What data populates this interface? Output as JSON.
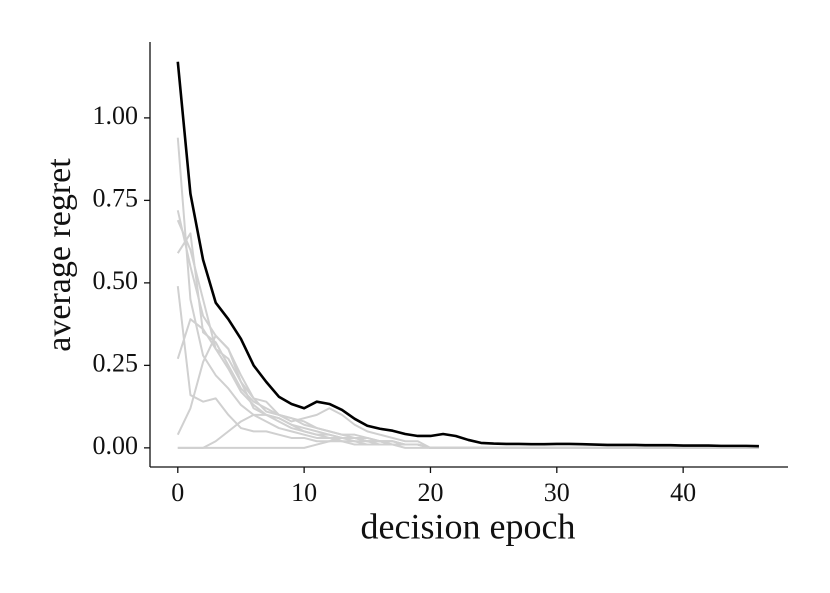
{
  "chart_data": {
    "type": "line",
    "xlabel": "decision epoch",
    "ylabel": "average regret",
    "x": [
      0,
      1,
      2,
      3,
      4,
      5,
      6,
      7,
      8,
      9,
      10,
      11,
      12,
      13,
      14,
      15,
      16,
      17,
      18,
      19,
      20,
      21,
      22,
      23,
      24,
      25,
      26,
      27,
      28,
      29,
      30,
      31,
      32,
      33,
      34,
      35,
      36,
      37,
      38,
      39,
      40,
      41,
      42,
      43,
      44,
      45,
      46
    ],
    "xlim": [
      -2.2,
      48.3
    ],
    "xticks": [
      0,
      10,
      20,
      30,
      40
    ],
    "ylim": [
      -0.058,
      1.23
    ],
    "yticks": [
      {
        "value": 0,
        "label": "0.00"
      },
      {
        "value": 0.25,
        "label": "0.25"
      },
      {
        "value": 0.5,
        "label": "0.50"
      },
      {
        "value": 0.75,
        "label": "0.75"
      },
      {
        "value": 1,
        "label": "1.00"
      }
    ],
    "grid": false,
    "series": [
      {
        "color": "#d0d0d0",
        "values": [
          0.94,
          0.45,
          0.28,
          0.22,
          0.18,
          0.13,
          0.1,
          0.08,
          0.06,
          0.05,
          0.04,
          0.03,
          0.03,
          0.02,
          0.02,
          0.01,
          0.01,
          0.01,
          0.01,
          0.01,
          0,
          0,
          0,
          0,
          0,
          0,
          0,
          0,
          0,
          0,
          0,
          0,
          0,
          0,
          0,
          0,
          0,
          0,
          0,
          0,
          0,
          0,
          0,
          0,
          0,
          0,
          0
        ]
      },
      {
        "color": "#d0d0d0",
        "values": [
          0.72,
          0.55,
          0.4,
          0.34,
          0.3,
          0.22,
          0.15,
          0.14,
          0.1,
          0.08,
          0.09,
          0.1,
          0.12,
          0.1,
          0.07,
          0.05,
          0.04,
          0.03,
          0.02,
          0.02,
          0,
          0,
          0,
          0,
          0,
          0,
          0,
          0,
          0,
          0,
          0,
          0,
          0,
          0,
          0,
          0,
          0,
          0,
          0,
          0,
          0,
          0,
          0,
          0,
          0,
          0,
          0
        ]
      },
      {
        "color": "#d0d0d0",
        "values": [
          0.69,
          0.6,
          0.45,
          0.3,
          0.27,
          0.2,
          0.12,
          0.1,
          0.09,
          0.07,
          0.06,
          0.05,
          0.04,
          0.03,
          0.03,
          0.02,
          0.02,
          0.01,
          0.01,
          0.01,
          0,
          0,
          0,
          0,
          0,
          0,
          0,
          0,
          0,
          0,
          0,
          0,
          0,
          0,
          0,
          0,
          0,
          0,
          0,
          0,
          0,
          0,
          0,
          0,
          0,
          0,
          0
        ]
      },
      {
        "color": "#d0d0d0",
        "values": [
          0.59,
          0.65,
          0.35,
          0.32,
          0.25,
          0.18,
          0.14,
          0.12,
          0.1,
          0.09,
          0.08,
          0.06,
          0.05,
          0.04,
          0.03,
          0.02,
          0.02,
          0.01,
          0.01,
          0.01,
          0,
          0,
          0,
          0,
          0,
          0,
          0,
          0,
          0,
          0,
          0,
          0,
          0,
          0,
          0,
          0,
          0,
          0,
          0,
          0,
          0,
          0,
          0,
          0,
          0,
          0,
          0
        ]
      },
      {
        "color": "#d0d0d0",
        "values": [
          0.49,
          0.16,
          0.14,
          0.15,
          0.1,
          0.06,
          0.05,
          0.05,
          0.04,
          0.03,
          0.03,
          0.02,
          0.02,
          0.02,
          0.01,
          0.01,
          0.01,
          0.01,
          0,
          0,
          0,
          0,
          0,
          0,
          0,
          0,
          0,
          0,
          0,
          0,
          0,
          0,
          0,
          0,
          0,
          0,
          0,
          0,
          0,
          0,
          0,
          0,
          0,
          0,
          0,
          0,
          0
        ]
      },
      {
        "color": "#d0d0d0",
        "values": [
          0.27,
          0.39,
          0.36,
          0.3,
          0.24,
          0.17,
          0.13,
          0.1,
          0.08,
          0.06,
          0.05,
          0.04,
          0.03,
          0.03,
          0.02,
          0.02,
          0.01,
          0.01,
          0.01,
          0.01,
          0,
          0,
          0,
          0,
          0,
          0,
          0,
          0,
          0,
          0,
          0,
          0,
          0,
          0,
          0,
          0,
          0,
          0,
          0,
          0,
          0,
          0,
          0,
          0,
          0,
          0,
          0
        ]
      },
      {
        "color": "#d0d0d0",
        "values": [
          0.04,
          0.12,
          0.26,
          0.34,
          0.3,
          0.2,
          0.15,
          0.11,
          0.1,
          0.09,
          0.07,
          0.06,
          0.05,
          0.04,
          0.04,
          0.03,
          0.02,
          0.02,
          0.01,
          0.01,
          0,
          0,
          0,
          0,
          0,
          0,
          0,
          0,
          0,
          0,
          0,
          0,
          0,
          0,
          0,
          0,
          0,
          0,
          0,
          0,
          0,
          0,
          0,
          0,
          0,
          0,
          0
        ]
      },
      {
        "color": "#d0d0d0",
        "values": [
          0,
          0,
          0,
          0.02,
          0.05,
          0.08,
          0.1,
          0.1,
          0.09,
          0.07,
          0.05,
          0.04,
          0.04,
          0.03,
          0.03,
          0.02,
          0.02,
          0.02,
          0.01,
          0.01,
          0,
          0,
          0,
          0,
          0,
          0,
          0,
          0,
          0,
          0,
          0,
          0,
          0,
          0,
          0,
          0,
          0,
          0,
          0,
          0,
          0,
          0,
          0,
          0,
          0,
          0,
          0
        ]
      },
      {
        "color": "#d0d0d0",
        "values": [
          0,
          0,
          0,
          0,
          0,
          0,
          0,
          0,
          0,
          0,
          0,
          0.01,
          0.02,
          0.03,
          0.03,
          0.03,
          0.02,
          0.02,
          0.01,
          0.01,
          0,
          0,
          0,
          0,
          0,
          0,
          0,
          0,
          0,
          0,
          0,
          0,
          0,
          0,
          0,
          0,
          0,
          0,
          0,
          0,
          0,
          0,
          0,
          0,
          0,
          0,
          0
        ]
      },
      {
        "color": "#000000",
        "values": [
          1.17,
          0.77,
          0.57,
          0.44,
          0.39,
          0.33,
          0.25,
          0.2,
          0.155,
          0.133,
          0.12,
          0.14,
          0.133,
          0.115,
          0.088,
          0.067,
          0.058,
          0.052,
          0.042,
          0.036,
          0.036,
          0.042,
          0.036,
          0.024,
          0.015,
          0.013,
          0.012,
          0.012,
          0.011,
          0.011,
          0.012,
          0.012,
          0.011,
          0.01,
          0.009,
          0.009,
          0.009,
          0.008,
          0.008,
          0.008,
          0.007,
          0.007,
          0.007,
          0.006,
          0.006,
          0.006,
          0.005
        ]
      }
    ]
  }
}
